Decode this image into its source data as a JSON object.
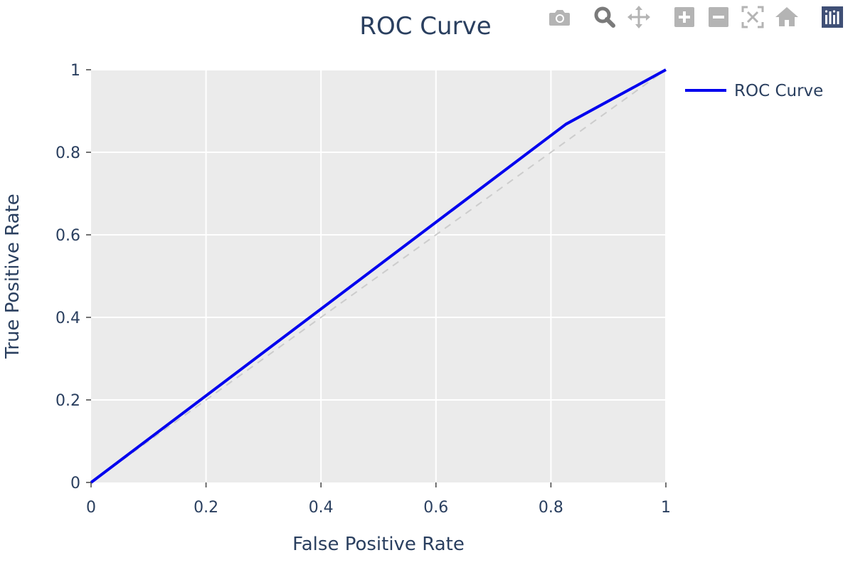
{
  "chart_data": {
    "type": "line",
    "title": "ROC Curve",
    "xlabel": "False Positive Rate",
    "ylabel": "True Positive Rate",
    "xlim": [
      0,
      1
    ],
    "ylim": [
      0,
      1
    ],
    "x_ticks": [
      "0",
      "0.2",
      "0.4",
      "0.6",
      "0.8",
      "1"
    ],
    "y_ticks": [
      "0",
      "0.2",
      "0.4",
      "0.6",
      "0.8",
      "1"
    ],
    "grid": true,
    "legend_position": "top-right",
    "series": [
      {
        "name": "ROC Curve",
        "color": "#0000ee",
        "style": "solid",
        "x": [
          0,
          0.826,
          1
        ],
        "y": [
          0,
          0.868,
          1
        ]
      },
      {
        "color": "#cccccc",
        "style": "dashed",
        "x": [
          0,
          1
        ],
        "y": [
          0,
          1
        ]
      }
    ]
  },
  "colors": {
    "plot_background": "#ebebeb",
    "gridline": "#ffffff",
    "text": "#2a3f5f",
    "modebar_icon": "#b4b4b4",
    "modebar_active": "#7a7a7a",
    "logo_background": "#3f4f75"
  },
  "modebar": [
    {
      "icon": "camera-icon",
      "active": false
    },
    {
      "icon": "zoom-icon",
      "active": true
    },
    {
      "icon": "pan-icon",
      "active": false
    },
    {
      "icon": "zoom-in-icon",
      "active": false
    },
    {
      "icon": "zoom-out-icon",
      "active": false
    },
    {
      "icon": "autoscale-icon",
      "active": false
    },
    {
      "icon": "reset-home-icon",
      "active": false
    },
    {
      "icon": "plotly-logo-icon",
      "active": false
    }
  ]
}
